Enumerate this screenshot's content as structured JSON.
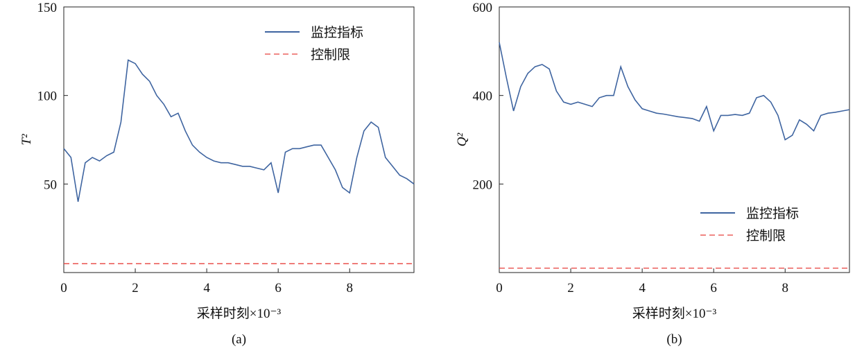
{
  "chart_data": [
    {
      "type": "line",
      "subtitle": "(a)",
      "ylabel": "T²",
      "xlabel": "采样时刻×10⁻³",
      "xlim": [
        0,
        9.8
      ],
      "xticks": [
        0,
        2,
        4,
        6,
        8
      ],
      "ylim": [
        0,
        150
      ],
      "yticks": [
        50,
        100,
        150
      ],
      "legend": "upper right",
      "series": [
        {
          "name": "监控指标",
          "color": "#3e64a0",
          "dashed": false,
          "x": [
            0,
            0.2,
            0.4,
            0.6,
            0.8,
            1,
            1.2,
            1.4,
            1.6,
            1.8,
            2,
            2.2,
            2.4,
            2.6,
            2.8,
            3,
            3.2,
            3.4,
            3.6,
            3.8,
            4,
            4.2,
            4.4,
            4.6,
            4.8,
            5,
            5.2,
            5.4,
            5.6,
            5.8,
            6,
            6.2,
            6.4,
            6.6,
            6.8,
            7,
            7.2,
            7.4,
            7.6,
            7.8,
            8,
            8.2,
            8.4,
            8.6,
            8.8,
            9,
            9.2,
            9.4,
            9.6,
            9.8
          ],
          "values": [
            70,
            65,
            40,
            62,
            65,
            63,
            66,
            68,
            85,
            120,
            118,
            112,
            108,
            100,
            95,
            88,
            90,
            80,
            72,
            68,
            65,
            63,
            62,
            62,
            61,
            60,
            60,
            59,
            58,
            62,
            45,
            68,
            70,
            70,
            71,
            72,
            72,
            65,
            58,
            48,
            45,
            65,
            80,
            85,
            82,
            65,
            60,
            55,
            53,
            50
          ]
        },
        {
          "name": "控制限",
          "color": "#e8413c",
          "dashed": true,
          "x": [
            0,
            9.8
          ],
          "values": [
            5,
            5
          ]
        }
      ]
    },
    {
      "type": "line",
      "subtitle": "(b)",
      "ylabel": "Q²",
      "xlabel": "采样时刻×10⁻³",
      "xlim": [
        0,
        9.8
      ],
      "xticks": [
        0,
        2,
        4,
        6,
        8
      ],
      "ylim": [
        0,
        600
      ],
      "yticks": [
        200,
        400,
        600
      ],
      "legend": "lower right",
      "series": [
        {
          "name": "监控指标",
          "color": "#3e64a0",
          "dashed": false,
          "x": [
            0,
            0.2,
            0.4,
            0.6,
            0.8,
            1,
            1.2,
            1.4,
            1.6,
            1.8,
            2,
            2.2,
            2.4,
            2.6,
            2.8,
            3,
            3.2,
            3.4,
            3.6,
            3.8,
            4,
            4.2,
            4.4,
            4.6,
            4.8,
            5,
            5.2,
            5.4,
            5.6,
            5.8,
            6,
            6.2,
            6.4,
            6.6,
            6.8,
            7,
            7.2,
            7.4,
            7.6,
            7.8,
            8,
            8.2,
            8.4,
            8.6,
            8.8,
            9,
            9.2,
            9.4,
            9.6,
            9.8
          ],
          "values": [
            520,
            440,
            365,
            420,
            450,
            465,
            470,
            460,
            410,
            385,
            380,
            385,
            380,
            375,
            395,
            400,
            400,
            465,
            420,
            390,
            370,
            365,
            360,
            358,
            355,
            352,
            350,
            348,
            342,
            375,
            320,
            355,
            355,
            357,
            355,
            360,
            395,
            400,
            385,
            355,
            300,
            310,
            345,
            335,
            320,
            355,
            360,
            362,
            365,
            368
          ]
        },
        {
          "name": "控制限",
          "color": "#e8413c",
          "dashed": true,
          "x": [
            0,
            9.8
          ],
          "values": [
            10,
            10
          ]
        }
      ]
    }
  ]
}
